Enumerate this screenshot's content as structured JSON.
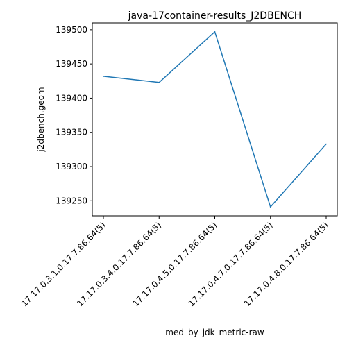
{
  "chart_data": {
    "type": "line",
    "title": "java-17container-results_J2DBENCH",
    "xlabel": "med_by_jdk_metric-raw",
    "ylabel": "j2dbench.geom",
    "categories": [
      "17.17.0.3.1.0.17.7.86.64(5)",
      "17.17.0.3.4.0.17.7.86.64(5)",
      "17.17.0.4.5.0.17.7.86.64(5)",
      "17.17.0.4.7.0.17.7.86.64(5)",
      "17.17.0.4.8.0.17.7.86.64(5)"
    ],
    "series": [
      {
        "values": [
          139432,
          139423,
          139497,
          139241,
          139333
        ],
        "color": "#1f77b4"
      }
    ],
    "yticks": [
      139250,
      139300,
      139350,
      139400,
      139450,
      139500
    ],
    "ylim": [
      139228,
      139510
    ],
    "grid": false,
    "legend": "none"
  }
}
